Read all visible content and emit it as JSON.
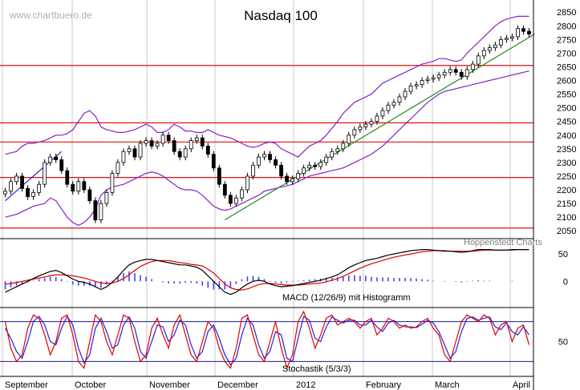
{
  "chart_data": {
    "type": "line",
    "title": "Nasdaq 100",
    "watermark": "www.chartbuero.de",
    "source": "Hoppenstedt Charts",
    "x_labels": [
      "September",
      "October",
      "November",
      "December",
      "2012",
      "February",
      "March",
      "April"
    ],
    "price_panel": {
      "ylim": [
        2030,
        2880
      ],
      "y_ticks": [
        2050,
        2100,
        2150,
        2200,
        2250,
        2300,
        2350,
        2400,
        2450,
        2500,
        2550,
        2600,
        2650,
        2700,
        2750,
        2800,
        2850
      ],
      "candle_style": "candlestick",
      "close_values": [
        2195,
        2230,
        2250,
        2205,
        2175,
        2190,
        2220,
        2300,
        2320,
        2310,
        2270,
        2220,
        2195,
        2230,
        2200,
        2160,
        2090,
        2150,
        2190,
        2260,
        2300,
        2340,
        2350,
        2320,
        2370,
        2380,
        2360,
        2370,
        2400,
        2380,
        2340,
        2320,
        2350,
        2380,
        2390,
        2360,
        2330,
        2280,
        2220,
        2180,
        2150,
        2170,
        2200,
        2250,
        2290,
        2320,
        2330,
        2310,
        2290,
        2250,
        2230,
        2240,
        2260,
        2280,
        2290,
        2285,
        2300,
        2320,
        2340,
        2350,
        2370,
        2400,
        2420,
        2430,
        2440,
        2450,
        2470,
        2490,
        2510,
        2520,
        2540,
        2560,
        2580,
        2585,
        2600,
        2605,
        2610,
        2620,
        2630,
        2640,
        2630,
        2615,
        2640,
        2660,
        2690,
        2710,
        2720,
        2730,
        2750,
        2755,
        2760,
        2790,
        2780,
        2770
      ],
      "upper_band": [
        2330,
        2335,
        2340,
        2360,
        2370,
        2370,
        2375,
        2380,
        2390,
        2400,
        2400,
        2405,
        2420,
        2450,
        2480,
        2490,
        2470,
        2430,
        2420,
        2415,
        2410,
        2410,
        2415,
        2420,
        2430,
        2440,
        2430,
        2410,
        2410,
        2420,
        2440,
        2430,
        2415,
        2415,
        2410,
        2410,
        2420,
        2410,
        2400,
        2395,
        2390,
        2380,
        2370,
        2360,
        2355,
        2360,
        2370,
        2375,
        2370,
        2350,
        2340,
        2330,
        2320,
        2340,
        2360,
        2370,
        2380,
        2400,
        2425,
        2450,
        2480,
        2500,
        2520,
        2530,
        2540,
        2550,
        2570,
        2590,
        2600,
        2610,
        2620,
        2630,
        2640,
        2650,
        2660,
        2665,
        2670,
        2680,
        2680,
        2675,
        2670,
        2675,
        2700,
        2720,
        2740,
        2760,
        2780,
        2800,
        2815,
        2825,
        2830,
        2835,
        2835,
        2835
      ],
      "lower_band": [
        2100,
        2105,
        2110,
        2120,
        2130,
        2140,
        2145,
        2150,
        2170,
        2160,
        2130,
        2100,
        2080,
        2070,
        2080,
        2100,
        2130,
        2180,
        2200,
        2210,
        2215,
        2220,
        2230,
        2240,
        2250,
        2260,
        2265,
        2260,
        2250,
        2235,
        2220,
        2205,
        2200,
        2200,
        2195,
        2180,
        2160,
        2140,
        2130,
        2125,
        2130,
        2140,
        2150,
        2160,
        2170,
        2180,
        2195,
        2200,
        2205,
        2210,
        2215,
        2220,
        2230,
        2240,
        2250,
        2255,
        2260,
        2265,
        2270,
        2275,
        2280,
        2290,
        2300,
        2310,
        2320,
        2330,
        2345,
        2360,
        2380,
        2400,
        2420,
        2440,
        2460,
        2480,
        2500,
        2520,
        2535,
        2550,
        2560,
        2565,
        2570,
        2575,
        2580,
        2585,
        2590,
        2595,
        2600,
        2605,
        2610,
        2615,
        2620,
        2625,
        2630,
        2635
      ],
      "horizontal_lines": [
        2060,
        2245,
        2375,
        2445,
        2655
      ],
      "trendlines": [
        {
          "from": [
            0,
            2160
          ],
          "to": [
            10,
            2340
          ]
        },
        {
          "from": [
            39,
            2090
          ],
          "to": [
            94,
            2770
          ]
        }
      ]
    },
    "macd_panel": {
      "label": "MACD (12/26/9) mit Histogramm",
      "ylim": [
        -45,
        75
      ],
      "y_ticks": [
        50,
        0
      ],
      "macd": [
        -20,
        -15,
        -10,
        -5,
        0,
        5,
        10,
        14,
        18,
        20,
        16,
        10,
        4,
        0,
        -2,
        -5,
        -10,
        -15,
        -10,
        -2,
        8,
        20,
        30,
        35,
        38,
        40,
        40,
        38,
        36,
        34,
        32,
        30,
        30,
        28,
        26,
        20,
        10,
        0,
        -10,
        -20,
        -24,
        -20,
        -12,
        -5,
        0,
        2,
        0,
        -5,
        -8,
        -10,
        -9,
        -8,
        -6,
        -4,
        -2,
        0,
        2,
        5,
        8,
        12,
        18,
        25,
        30,
        34,
        38,
        40,
        42,
        45,
        48,
        50,
        52,
        54,
        56,
        57,
        58,
        58,
        57,
        56,
        55,
        55,
        54,
        53,
        54,
        56,
        58,
        58,
        58,
        57,
        57,
        57,
        58,
        58,
        58,
        58
      ],
      "signal": [
        -5,
        -4,
        -2,
        0,
        2,
        4,
        6,
        8,
        10,
        12,
        12,
        11,
        10,
        8,
        6,
        3,
        0,
        -3,
        -4,
        -3,
        0,
        5,
        12,
        20,
        27,
        32,
        36,
        38,
        38,
        38,
        36,
        34,
        33,
        31,
        30,
        28,
        22,
        15,
        5,
        -5,
        -12,
        -15,
        -16,
        -14,
        -10,
        -6,
        -4,
        -4,
        -5,
        -6,
        -7,
        -7,
        -7,
        -6,
        -5,
        -4,
        -3,
        -1,
        2,
        5,
        9,
        14,
        19,
        24,
        28,
        32,
        35,
        38,
        41,
        44,
        46,
        48,
        50,
        52,
        54,
        55,
        56,
        56,
        56,
        55,
        55,
        55,
        55,
        55,
        56,
        57,
        57,
        57,
        57,
        57,
        57,
        58,
        58,
        58
      ],
      "line_colors": {
        "macd": "#000000",
        "signal": "#e00000",
        "histogram": "#4444ee"
      }
    },
    "stochastic_panel": {
      "label": "Stochastik (5/3/3)",
      "ylim": [
        0,
        100
      ],
      "y_ticks": [
        50
      ],
      "reference_lines": [
        20,
        80
      ],
      "k": [
        80,
        40,
        20,
        30,
        70,
        90,
        85,
        60,
        30,
        50,
        85,
        90,
        60,
        20,
        10,
        50,
        90,
        80,
        50,
        30,
        60,
        90,
        85,
        50,
        20,
        30,
        70,
        85,
        60,
        40,
        75,
        90,
        60,
        30,
        20,
        50,
        80,
        70,
        40,
        20,
        10,
        40,
        85,
        90,
        60,
        30,
        20,
        50,
        80,
        40,
        10,
        30,
        80,
        95,
        70,
        40,
        60,
        85,
        90,
        75,
        80,
        85,
        80,
        70,
        80,
        85,
        60,
        70,
        85,
        80,
        70,
        75,
        70,
        72,
        80,
        85,
        70,
        60,
        30,
        20,
        50,
        80,
        90,
        85,
        80,
        90,
        85,
        60,
        75,
        80,
        50,
        70,
        75,
        45
      ],
      "d": [
        70,
        55,
        35,
        25,
        50,
        80,
        88,
        75,
        50,
        45,
        70,
        88,
        75,
        40,
        18,
        30,
        70,
        85,
        65,
        40,
        45,
        75,
        87,
        70,
        35,
        25,
        50,
        75,
        72,
        50,
        60,
        82,
        75,
        45,
        25,
        35,
        65,
        75,
        55,
        30,
        15,
        25,
        60,
        85,
        75,
        45,
        25,
        35,
        65,
        60,
        25,
        20,
        55,
        88,
        82,
        55,
        50,
        72,
        87,
        82,
        78,
        82,
        82,
        75,
        75,
        82,
        72,
        65,
        78,
        82,
        75,
        72,
        72,
        71,
        76,
        82,
        78,
        65,
        45,
        25,
        35,
        65,
        85,
        87,
        82,
        85,
        87,
        72,
        68,
        78,
        65,
        60,
        72,
        60
      ],
      "line_colors": {
        "k": "#e00000",
        "d": "#2222dd"
      }
    }
  }
}
